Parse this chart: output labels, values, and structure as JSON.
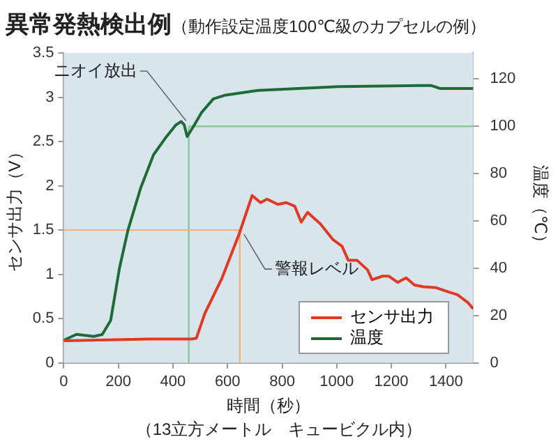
{
  "chart_data": {
    "type": "line",
    "title": "異常発熱検出例",
    "subtitle": "（動作設定温度100℃級のカプセルの例）",
    "xlabel": "時間（秒）",
    "ylabel": "センサ出力（V）",
    "y2label": "温度（℃）",
    "annotations": [
      "（13立方メートル　キュービクル内）"
    ],
    "xlim": [
      0,
      1500
    ],
    "xticks": [
      0,
      200,
      400,
      600,
      800,
      1000,
      1200,
      1400
    ],
    "ylim": [
      0,
      3.5
    ],
    "yticks": [
      0,
      0.5,
      1,
      1.5,
      2,
      2.5,
      3,
      3.5
    ],
    "y2lim": [
      0,
      131
    ],
    "y2ticks": [
      0,
      20,
      40,
      60,
      80,
      100,
      120
    ],
    "grid": false,
    "legend": "bottom right",
    "marker": "none",
    "line_style": "solid",
    "series": [
      {
        "name": "センサ出力",
        "color": "#e03a24",
        "x": [
          0,
          313,
          470,
          486,
          517,
          580,
          643,
          690,
          721,
          745,
          784,
          815,
          846,
          870,
          893,
          940,
          987,
          1019,
          1042,
          1074,
          1113,
          1129,
          1168,
          1191,
          1223,
          1254,
          1285,
          1317,
          1364,
          1411,
          1442,
          1481,
          1500
        ],
        "values": [
          0.25,
          0.27,
          0.27,
          0.28,
          0.56,
          0.96,
          1.46,
          1.89,
          1.81,
          1.85,
          1.79,
          1.81,
          1.77,
          1.59,
          1.7,
          1.57,
          1.39,
          1.32,
          1.16,
          1.16,
          1.05,
          0.94,
          0.98,
          0.98,
          0.91,
          0.96,
          0.88,
          0.86,
          0.85,
          0.8,
          0.77,
          0.68,
          0.61
        ]
      },
      {
        "name": "温度",
        "color": "#1f6b35",
        "axis": "y2",
        "x": [
          0,
          47,
          110,
          141,
          172,
          204,
          235,
          282,
          329,
          376,
          411,
          430,
          441,
          452,
          474,
          504,
          548,
          593,
          711,
          1008,
          1304,
          1347,
          1378,
          1408,
          1500
        ],
        "values": [
          9.6,
          12.1,
          11.2,
          12,
          18,
          40,
          56,
          74,
          88,
          95.6,
          100.6,
          102,
          100.7,
          95.7,
          99.7,
          105.7,
          111.6,
          113.2,
          115.2,
          116.8,
          117.2,
          117.2,
          116,
          116,
          116
        ]
      }
    ],
    "ref_lines": [
      {
        "axis": "x",
        "value": 458,
        "label": "ニオイ放出",
        "color": "#8cc897"
      },
      {
        "axis": "y2",
        "value": 100,
        "color": "#8cc897"
      },
      {
        "axis": "x",
        "value": 645,
        "label": "警報レベル",
        "color": "#f2b27a"
      },
      {
        "axis": "y",
        "value": 1.5,
        "color": "#f2b27a"
      }
    ]
  }
}
